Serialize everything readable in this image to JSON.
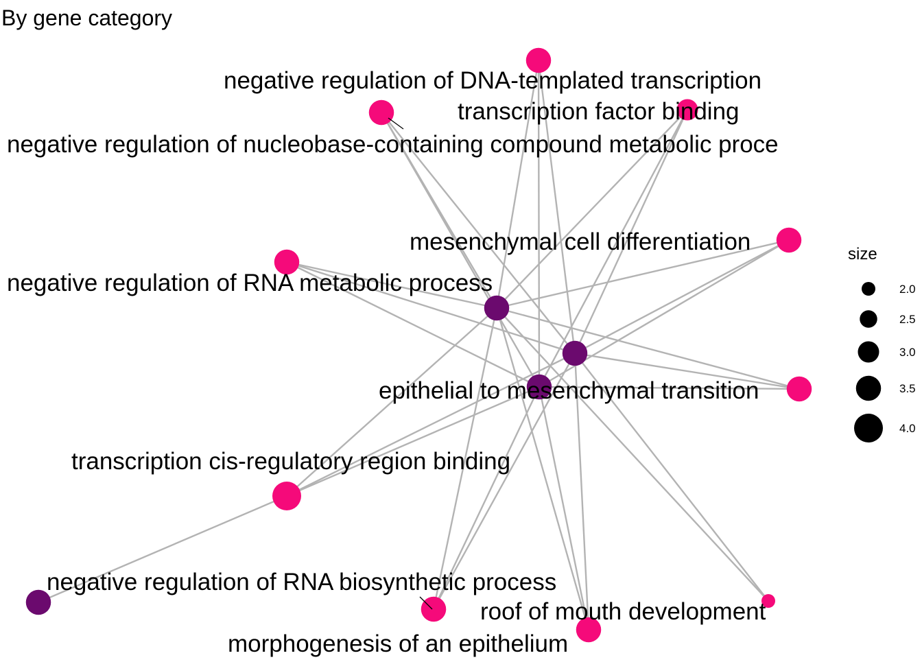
{
  "title": "By gene category",
  "colors": {
    "category": "#6B0A6E",
    "gene": "#F50A7A",
    "edge": "#B3B3B3"
  },
  "nodes": [
    {
      "id": "g_top",
      "type": "gene",
      "size": 3.5
    },
    {
      "id": "g_nrdna",
      "type": "gene",
      "size": 3.5
    },
    {
      "id": "g_tfb",
      "type": "gene",
      "size": 3.0
    },
    {
      "id": "g_mcd",
      "type": "gene",
      "size": 3.5
    },
    {
      "id": "g_rnamet",
      "type": "gene",
      "size": 3.5
    },
    {
      "id": "c_rnamet",
      "type": "category",
      "size": 3.5,
      "label": "negative regulation of RNA metabolic process"
    },
    {
      "id": "c_mcd",
      "type": "category",
      "size": 3.5,
      "label": "mesenchymal cell differentiation"
    },
    {
      "id": "c_emt",
      "type": "category",
      "size": 3.5,
      "label": "epithelial to mesenchymal transition"
    },
    {
      "id": "g_emt",
      "type": "gene",
      "size": 3.5
    },
    {
      "id": "g_cis",
      "type": "gene",
      "size": 4.0
    },
    {
      "id": "c_rnabio",
      "type": "category",
      "size": 3.5,
      "label": "negative regulation of RNA biosynthetic process"
    },
    {
      "id": "g_morph",
      "type": "gene",
      "size": 3.5
    },
    {
      "id": "g_morph2",
      "type": "gene",
      "size": 3.5
    },
    {
      "id": "g_roof",
      "type": "gene",
      "size": 2.0
    }
  ],
  "labels": [
    {
      "text": "negative regulation of DNA-templated transcription"
    },
    {
      "text": "transcription factor binding"
    },
    {
      "text": "negative regulation of nucleobase-containing compound metabolic proce"
    },
    {
      "text": "mesenchymal cell differentiation"
    },
    {
      "text": "negative regulation of RNA metabolic process"
    },
    {
      "text": "epithelial to mesenchymal transition"
    },
    {
      "text": "transcription cis-regulatory region binding"
    },
    {
      "text": "negative regulation of RNA biosynthetic process"
    },
    {
      "text": "roof of mouth development"
    },
    {
      "text": "morphogenesis of an epithelium"
    }
  ],
  "edges": [
    [
      "g_top",
      "c_rnamet"
    ],
    [
      "g_top",
      "c_emt"
    ],
    [
      "g_top",
      "c_mcd"
    ],
    [
      "g_nrdna",
      "c_rnamet"
    ],
    [
      "g_nrdna",
      "c_emt"
    ],
    [
      "g_nrdna",
      "c_mcd"
    ],
    [
      "g_tfb",
      "c_rnamet"
    ],
    [
      "g_tfb",
      "c_emt"
    ],
    [
      "g_tfb",
      "c_mcd"
    ],
    [
      "g_mcd",
      "c_rnamet"
    ],
    [
      "g_mcd",
      "c_emt"
    ],
    [
      "g_mcd",
      "c_mcd"
    ],
    [
      "g_rnamet",
      "c_rnamet"
    ],
    [
      "g_rnamet",
      "c_emt"
    ],
    [
      "g_rnamet",
      "c_mcd"
    ],
    [
      "g_emt",
      "c_rnamet"
    ],
    [
      "g_emt",
      "c_emt"
    ],
    [
      "g_emt",
      "c_mcd"
    ],
    [
      "g_cis",
      "c_rnamet"
    ],
    [
      "g_cis",
      "c_emt"
    ],
    [
      "g_cis",
      "c_mcd"
    ],
    [
      "g_cis",
      "c_rnabio"
    ],
    [
      "g_morph",
      "c_rnamet"
    ],
    [
      "g_morph",
      "c_emt"
    ],
    [
      "g_morph",
      "c_mcd"
    ],
    [
      "g_morph2",
      "c_rnamet"
    ],
    [
      "g_morph2",
      "c_emt"
    ],
    [
      "g_morph2",
      "c_mcd"
    ],
    [
      "g_roof",
      "c_rnamet"
    ],
    [
      "g_roof",
      "c_mcd"
    ]
  ],
  "legend": {
    "title": "size",
    "items": [
      {
        "value": 2.0,
        "label": "2.0"
      },
      {
        "value": 2.5,
        "label": "2.5"
      },
      {
        "value": 3.0,
        "label": "3.0"
      },
      {
        "value": 3.5,
        "label": "3.5"
      },
      {
        "value": 4.0,
        "label": "4.0"
      }
    ]
  }
}
